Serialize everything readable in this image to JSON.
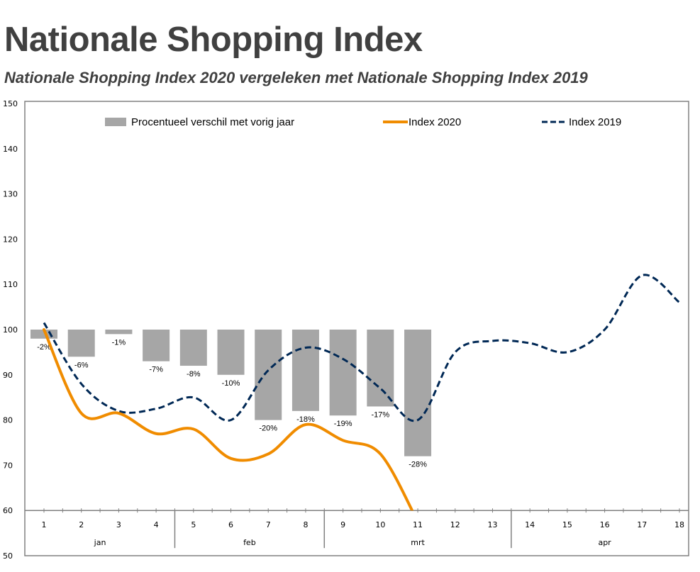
{
  "title": "Nationale Shopping Index",
  "subtitle": "Nationale Shopping Index 2020 vergeleken met Nationale Shopping Index 2019",
  "colors": {
    "bars": "#a6a6a6",
    "index2020": "#f08c00",
    "index2019": "#002855",
    "frame": "#808080",
    "text": "#404040"
  },
  "chart_data": {
    "type": "line",
    "title": "Nationale Shopping Index",
    "subtitle": "Nationale Shopping Index 2020 vergeleken met Nationale Shopping Index 2019",
    "xlabel": "",
    "ylabel": "",
    "ylim": [
      50,
      150
    ],
    "yticks": [
      150,
      140,
      130,
      120,
      110,
      100,
      90,
      80,
      70,
      60,
      50
    ],
    "x_axis_crosses_at": 60,
    "grid": false,
    "legend_position": "top",
    "categories": [
      "1",
      "2",
      "3",
      "4",
      "5",
      "6",
      "7",
      "8",
      "9",
      "10",
      "11",
      "12",
      "13",
      "14",
      "15",
      "16",
      "17",
      "18"
    ],
    "month_groups": [
      {
        "label": "jan",
        "from": 1,
        "to": 4
      },
      {
        "label": "feb",
        "from": 5,
        "to": 8
      },
      {
        "label": "mrt",
        "from": 9,
        "to": 13
      },
      {
        "label": "apr",
        "from": 14,
        "to": 18
      }
    ],
    "bar_baseline": 100,
    "series": [
      {
        "name": "Procentueel verschil met vorig jaar",
        "type": "bar",
        "values": [
          -2,
          -6,
          -1,
          -7,
          -8,
          -10,
          -20,
          -18,
          -19,
          -17,
          -28
        ],
        "labels": [
          "-2%",
          "-6%",
          "-1%",
          "-7%",
          "-8%",
          "-10%",
          "-20%",
          "-18%",
          "-19%",
          "-17%",
          "-28%"
        ]
      },
      {
        "name": "Index 2020",
        "type": "line",
        "style": "solid",
        "values": [
          100,
          81.5,
          81.5,
          77,
          78,
          71.5,
          72.5,
          79,
          75.5,
          72.5,
          57.5
        ]
      },
      {
        "name": "Index 2019",
        "type": "line",
        "style": "dashed",
        "values": [
          101.5,
          88,
          82,
          82.5,
          85,
          80,
          91,
          96,
          93.5,
          87,
          80,
          95,
          97.5,
          97,
          95,
          100,
          112,
          106
        ]
      }
    ]
  }
}
